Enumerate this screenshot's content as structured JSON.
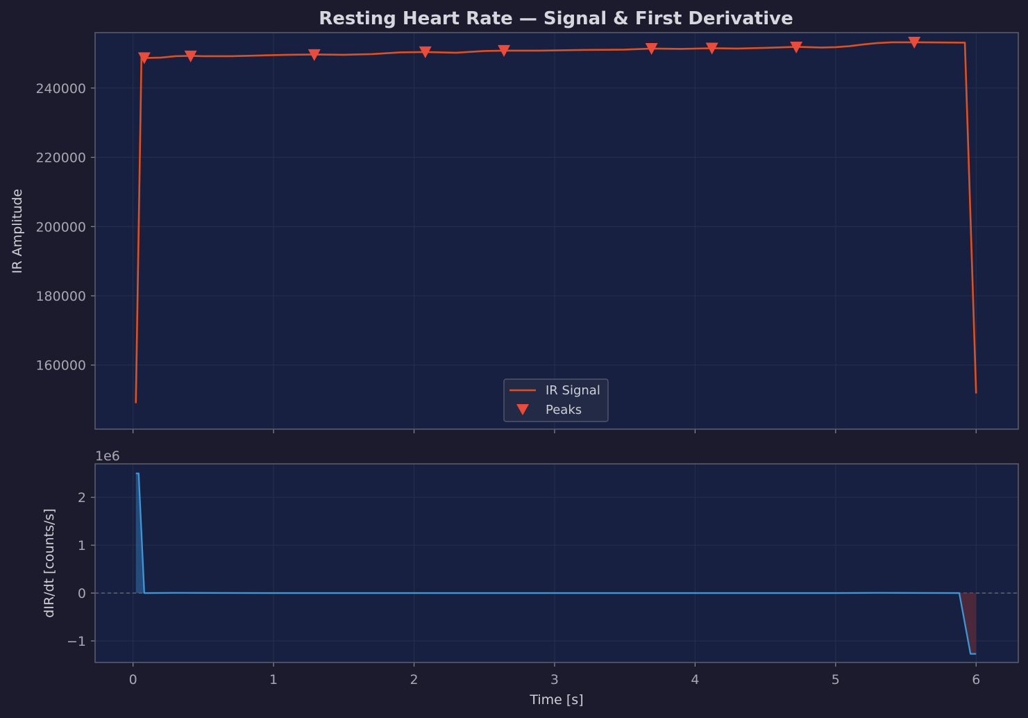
{
  "title": "Resting Heart Rate — Signal & First Derivative",
  "colors": {
    "background": "#1b1b2d",
    "plot_bg": "#172040",
    "signal": "#e0501f",
    "peaks": "#ec4a3a",
    "derivative": "#3b97d8",
    "fill_positive": "#2f6fa8",
    "fill_negative": "#5a2a3a",
    "text": "#cfcfd6",
    "tick_text": "#a8a8b4"
  },
  "chart_data": [
    {
      "type": "line",
      "ylabel": "IR Amplitude",
      "xlim": [
        -0.27,
        6.3
      ],
      "ylim": [
        141500,
        256000
      ],
      "yticks": [
        160000,
        180000,
        200000,
        220000,
        240000
      ],
      "ytick_labels": [
        "160000",
        "180000",
        "200000",
        "220000",
        "240000"
      ],
      "grid": true,
      "legend": {
        "position": "bottom-center",
        "entries": [
          {
            "label": "IR Signal",
            "kind": "line"
          },
          {
            "label": "Peaks",
            "kind": "marker"
          }
        ]
      },
      "series": [
        {
          "name": "IR Signal",
          "x": [
            0.02,
            0.06,
            0.1,
            0.2,
            0.3,
            0.41,
            0.5,
            0.7,
            0.9,
            1.1,
            1.3,
            1.5,
            1.7,
            1.9,
            2.08,
            2.3,
            2.5,
            2.65,
            2.9,
            3.2,
            3.5,
            3.69,
            3.9,
            4.12,
            4.3,
            4.5,
            4.72,
            4.9,
            5.0,
            5.1,
            5.2,
            5.3,
            5.4,
            5.6,
            5.92,
            6.0
          ],
          "y": [
            149000,
            248800,
            248700,
            248800,
            249200,
            249300,
            249200,
            249200,
            249400,
            249600,
            249700,
            249600,
            249800,
            250300,
            250400,
            250200,
            250700,
            250800,
            250800,
            251000,
            251100,
            251400,
            251300,
            251500,
            251400,
            251600,
            251900,
            251700,
            251800,
            252100,
            252600,
            253000,
            253200,
            253200,
            253100,
            151800
          ]
        },
        {
          "name": "Peaks",
          "marker": "triangle-down",
          "x": [
            0.08,
            0.41,
            1.29,
            2.08,
            2.64,
            3.69,
            4.12,
            4.72,
            5.56
          ],
          "y": [
            248700,
            249200,
            249600,
            250400,
            250800,
            251400,
            251500,
            251800,
            253200
          ]
        }
      ]
    },
    {
      "type": "line",
      "xlabel": "Time [s]",
      "ylabel": "dIR/dt [counts/s]",
      "y_offset_label": "1e6",
      "xlim": [
        -0.27,
        6.3
      ],
      "ylim": [
        -1.45,
        2.7
      ],
      "xticks": [
        0,
        1,
        2,
        3,
        4,
        5,
        6
      ],
      "xtick_labels": [
        "0",
        "1",
        "2",
        "3",
        "4",
        "5",
        "6"
      ],
      "yticks": [
        -1,
        0,
        1,
        2
      ],
      "ytick_labels": [
        "−1",
        "0",
        "1",
        "2"
      ],
      "grid": true,
      "zero_line": true,
      "series": [
        {
          "name": "dIR/dt",
          "x": [
            0.02,
            0.04,
            0.08,
            0.1,
            0.3,
            1.0,
            2.0,
            3.0,
            4.0,
            5.0,
            5.3,
            5.88,
            5.96,
            6.0
          ],
          "y": [
            2.5,
            2.5,
            0.0,
            0.0,
            0.005,
            0.0,
            0.0,
            0.0,
            0.0,
            0.0,
            0.005,
            0.0,
            -1.27,
            -1.27
          ]
        }
      ]
    }
  ]
}
